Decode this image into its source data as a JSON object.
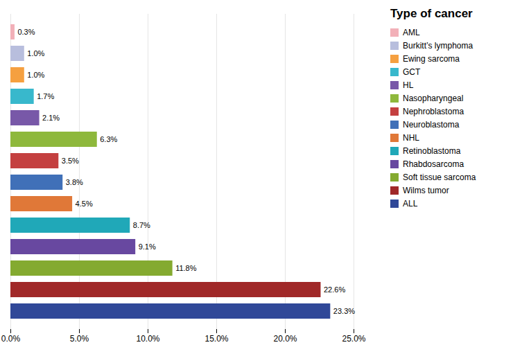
{
  "chart_data": {
    "type": "bar",
    "orientation": "horizontal",
    "title": "Type of cancer",
    "categories": [
      "AML",
      "Burkitt’s lymphoma",
      "Ewing sarcoma",
      "GCT",
      "HL",
      "Nasopharyngeal",
      "Nephroblastoma",
      "Neuroblastoma",
      "NHL",
      "Retinoblastoma",
      "Rhabdosarcoma",
      "Soft tissue sarcoma",
      "Wilms tumor",
      "ALL"
    ],
    "values": [
      0.3,
      1.0,
      1.0,
      1.7,
      2.1,
      6.3,
      3.5,
      3.8,
      4.5,
      8.7,
      9.1,
      11.8,
      22.6,
      23.3
    ],
    "value_labels": [
      "0.3%",
      "1.0%",
      "1.0%",
      "1.7%",
      "2.1%",
      "6.3%",
      "3.5%",
      "3.8%",
      "4.5%",
      "8.7%",
      "9.1%",
      "11.8%",
      "22.6%",
      "23.3%"
    ],
    "data_labels": true,
    "colors": [
      "#f2b0b8",
      "#b8bedd",
      "#f5a040",
      "#38b8cc",
      "#7858a8",
      "#8eb83c",
      "#c44040",
      "#4070b8",
      "#e07838",
      "#20a8b8",
      "#6848a0",
      "#84aa30",
      "#a02828",
      "#304898"
    ],
    "xlim": [
      0,
      25.0
    ],
    "xticks": [
      {
        "value": 0,
        "label": "0.0%"
      },
      {
        "value": 5.0,
        "label": "5.0%"
      },
      {
        "value": 10.0,
        "label": "10.0%"
      },
      {
        "value": 15.0,
        "label": "15.0%"
      },
      {
        "value": 20.0,
        "label": "20.0%"
      },
      {
        "value": 25.0,
        "label": "25.0%"
      }
    ],
    "grid": true,
    "legend": "right",
    "tick_labels": "x"
  }
}
